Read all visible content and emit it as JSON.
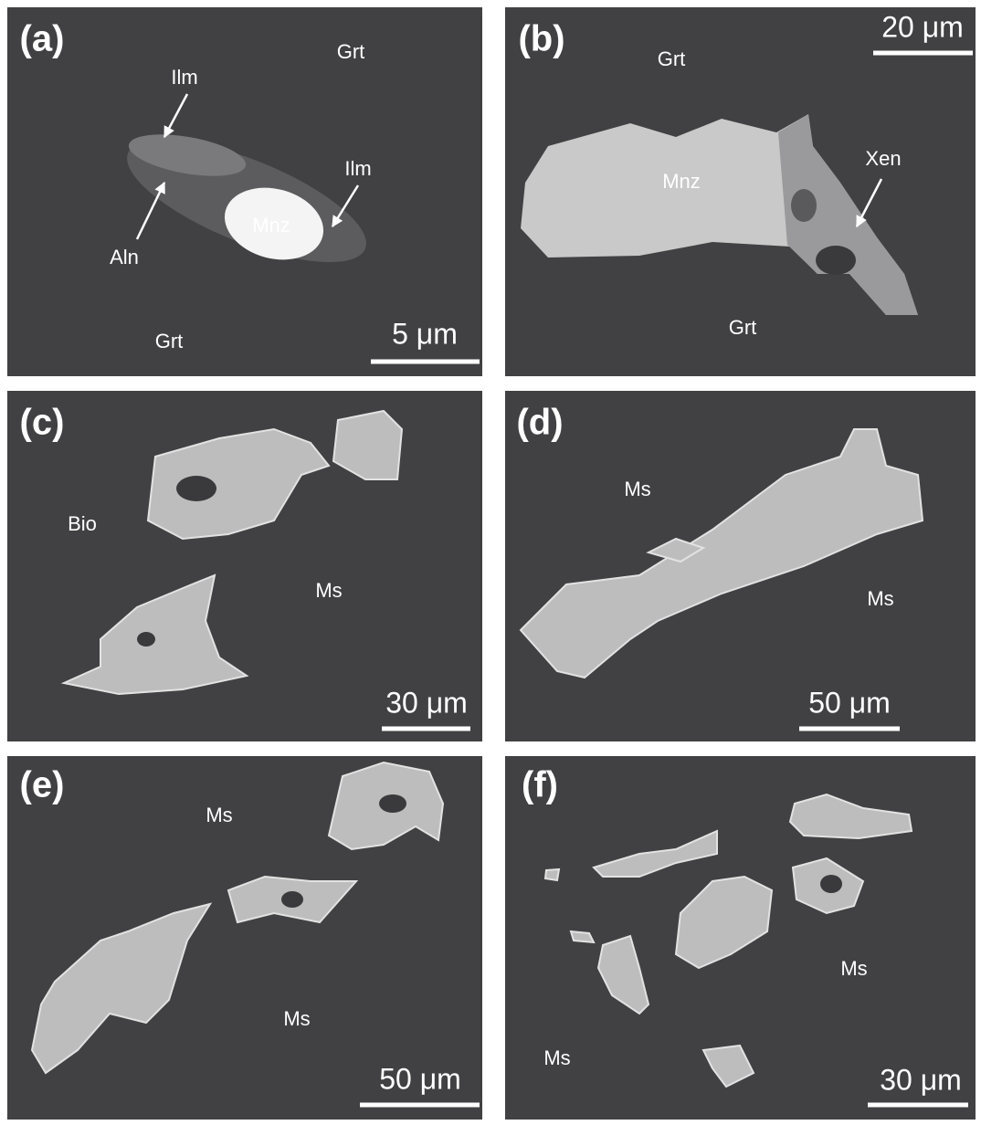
{
  "panels": [
    {
      "label": "(a)",
      "scale_bar": "5 μm",
      "annotations": [
        "Grt",
        "Ilm",
        "Ilm",
        "Aln",
        "Mnz",
        "Grt"
      ]
    },
    {
      "label": "(b)",
      "scale_bar": "20 μm",
      "annotations": [
        "Grt",
        "Mnz",
        "Xen",
        "Grt"
      ]
    },
    {
      "label": "(c)",
      "scale_bar": "30 μm",
      "annotations": [
        "Bio",
        "Ms"
      ]
    },
    {
      "label": "(d)",
      "scale_bar": "50 μm",
      "annotations": [
        "Ms",
        "Ms"
      ]
    },
    {
      "label": "(e)",
      "scale_bar": "50 μm",
      "annotations": [
        "Ms",
        "Ms"
      ]
    },
    {
      "label": "(f)",
      "scale_bar": "30 μm",
      "annotations": [
        "Ms",
        "Ms"
      ]
    }
  ]
}
